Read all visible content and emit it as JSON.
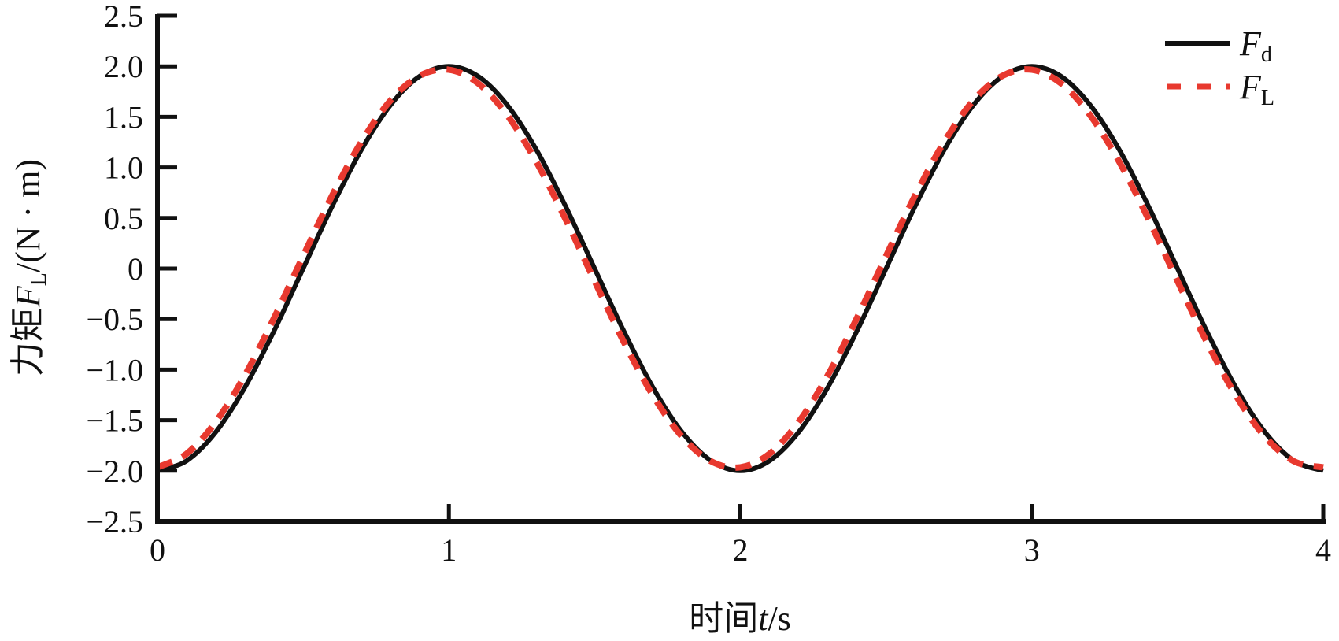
{
  "chart_data": {
    "type": "line",
    "title": "",
    "xlabel": {
      "prefix": "时间",
      "var": "t",
      "unit": "/s"
    },
    "ylabel": {
      "prefix": "力矩",
      "var": "F",
      "sub": "L",
      "unit": "/(N · m)"
    },
    "xlim": [
      0,
      4
    ],
    "ylim": [
      -2.5,
      2.5
    ],
    "xticks": [
      "0",
      "1",
      "2",
      "3",
      "4"
    ],
    "yticks": [
      "2.5",
      "2.0",
      "1.5",
      "1.0",
      "0.5",
      "0",
      "−0.5",
      "−1.0",
      "−1.5",
      "−2.0",
      "−2.5"
    ],
    "grid": false,
    "legend_position": "top-right",
    "x": [
      0,
      0.1,
      0.2,
      0.3,
      0.4,
      0.5,
      0.6,
      0.7,
      0.8,
      0.9,
      1.0,
      1.1,
      1.2,
      1.3,
      1.4,
      1.5,
      1.6,
      1.7,
      1.8,
      1.9,
      2.0,
      2.1,
      2.2,
      2.3,
      2.4,
      2.5,
      2.6,
      2.7,
      2.8,
      2.9,
      3.0,
      3.1,
      3.2,
      3.3,
      3.4,
      3.5,
      3.6,
      3.7,
      3.8,
      3.9,
      4.0
    ],
    "series": [
      {
        "name": "F",
        "sub": "d",
        "color": "#111111",
        "style": "solid",
        "values": [
          -2,
          -1.902,
          -1.618,
          -1.176,
          -0.618,
          0,
          0.618,
          1.176,
          1.618,
          1.902,
          2,
          1.902,
          1.618,
          1.176,
          0.618,
          0,
          -0.618,
          -1.176,
          -1.618,
          -1.902,
          -2,
          -1.902,
          -1.618,
          -1.176,
          -0.618,
          0,
          0.618,
          1.176,
          1.618,
          1.902,
          2,
          1.902,
          1.618,
          1.176,
          0.618,
          0,
          -0.618,
          -1.176,
          -1.618,
          -1.902,
          -2
        ]
      },
      {
        "name": "F",
        "sub": "L",
        "color": "#e8392f",
        "style": "dashed",
        "values": [
          -1.966,
          -1.832,
          -1.517,
          -1.056,
          -0.49,
          0.124,
          0.725,
          1.255,
          1.663,
          1.907,
          1.966,
          1.832,
          1.517,
          1.056,
          0.49,
          -0.124,
          -0.725,
          -1.255,
          -1.663,
          -1.907,
          -1.966,
          -1.832,
          -1.517,
          -1.056,
          -0.49,
          0.124,
          0.725,
          1.255,
          1.663,
          1.907,
          1.966,
          1.832,
          1.517,
          1.056,
          0.49,
          -0.124,
          -0.725,
          -1.255,
          -1.663,
          -1.907,
          -1.966
        ]
      }
    ]
  }
}
